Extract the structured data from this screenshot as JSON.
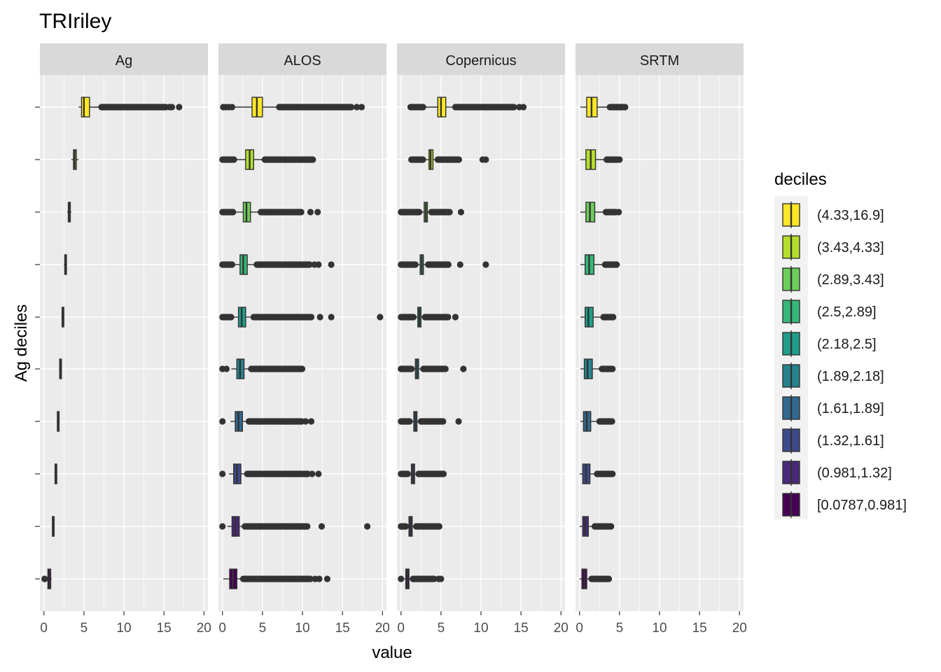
{
  "chart_data": {
    "type": "boxplot",
    "title": "TRIriley",
    "xlabel": "value",
    "ylabel": "Ag deciles",
    "xlim": [
      -0.5,
      20.5
    ],
    "x_ticks": [
      "0",
      "5",
      "10",
      "15",
      "20"
    ],
    "x_tick_values": [
      0,
      5,
      10,
      15,
      20
    ],
    "grid": true,
    "legend": {
      "title": "deciles",
      "position": "right",
      "entries": [
        {
          "label": "(4.33,16.9]",
          "color": "#FDE725"
        },
        {
          "label": "(3.43,4.33]",
          "color": "#B4DE2C"
        },
        {
          "label": "(2.89,3.43]",
          "color": "#6DCD59"
        },
        {
          "label": "(2.5,2.89]",
          "color": "#35B779"
        },
        {
          "label": "(2.18,2.5]",
          "color": "#1F9E89"
        },
        {
          "label": "(1.89,2.18]",
          "color": "#26828E"
        },
        {
          "label": "(1.61,1.89]",
          "color": "#31688E"
        },
        {
          "label": "(1.32,1.61]",
          "color": "#3E4A89"
        },
        {
          "label": "(0.981,1.32]",
          "color": "#482878"
        },
        {
          "label": "[0.0787,0.981]",
          "color": "#440154"
        }
      ]
    },
    "panels": [
      {
        "name": "Ag",
        "boxes": [
          {
            "q1": 4.7,
            "median": 5.0,
            "q3": 5.7,
            "wlo": 4.33,
            "whi": 7.2,
            "outliers": [
              [
                7.2,
                15.3
              ],
              15.7,
              16.0,
              16.9
            ]
          },
          {
            "q1": 3.7,
            "median": 3.85,
            "q3": 4.05,
            "wlo": 3.43,
            "whi": 4.33,
            "outliers": []
          },
          {
            "q1": 3.05,
            "median": 3.15,
            "q3": 3.3,
            "wlo": 2.89,
            "whi": 3.43,
            "outliers": []
          },
          {
            "q1": 2.6,
            "median": 2.7,
            "q3": 2.8,
            "wlo": 2.5,
            "whi": 2.89,
            "outliers": []
          },
          {
            "q1": 2.27,
            "median": 2.34,
            "q3": 2.42,
            "wlo": 2.18,
            "whi": 2.5,
            "outliers": []
          },
          {
            "q1": 1.97,
            "median": 2.04,
            "q3": 2.11,
            "wlo": 1.89,
            "whi": 2.18,
            "outliers": []
          },
          {
            "q1": 1.68,
            "median": 1.75,
            "q3": 1.82,
            "wlo": 1.61,
            "whi": 1.89,
            "outliers": []
          },
          {
            "q1": 1.39,
            "median": 1.46,
            "q3": 1.54,
            "wlo": 1.32,
            "whi": 1.61,
            "outliers": []
          },
          {
            "q1": 1.06,
            "median": 1.15,
            "q3": 1.24,
            "wlo": 0.981,
            "whi": 1.32,
            "outliers": []
          },
          {
            "q1": 0.5,
            "median": 0.7,
            "q3": 0.85,
            "wlo": 0.0787,
            "whi": 0.981,
            "outliers": [
              0.0787,
              0.12
            ]
          }
        ]
      },
      {
        "name": "ALOS",
        "boxes": [
          {
            "q1": 3.7,
            "median": 4.3,
            "q3": 5.0,
            "wlo": 1.5,
            "whi": 7.1,
            "outliers": [
              0.1,
              0.4,
              0.8,
              1.2,
              [
                7.1,
                16.2
              ],
              16.8,
              17.4
            ]
          },
          {
            "q1": 2.9,
            "median": 3.4,
            "q3": 3.9,
            "wlo": 1.5,
            "whi": 5.3,
            "outliers": [
              [
                0,
                1.5
              ],
              [
                5.3,
                11.3
              ]
            ]
          },
          {
            "q1": 2.6,
            "median": 3.0,
            "q3": 3.5,
            "wlo": 1.4,
            "whi": 4.8,
            "outliers": [
              [
                0,
                1.4
              ],
              [
                4.8,
                9.9
              ],
              11.0,
              11.9
            ]
          },
          {
            "q1": 2.2,
            "median": 2.6,
            "q3": 3.1,
            "wlo": 1.3,
            "whi": 4.3,
            "outliers": [
              [
                0,
                1.3
              ],
              [
                4.3,
                11.0
              ],
              11.5,
              12.0,
              13.6
            ]
          },
          {
            "q1": 2.0,
            "median": 2.4,
            "q3": 2.9,
            "wlo": 1.2,
            "whi": 3.9,
            "outliers": [
              [
                0,
                1.2
              ],
              [
                3.9,
                11.1
              ],
              12.2,
              13.6,
              19.7
            ]
          },
          {
            "q1": 1.8,
            "median": 2.2,
            "q3": 2.7,
            "wlo": 1.1,
            "whi": 3.6,
            "outliers": [
              0,
              0.5,
              [
                3.6,
                10.0
              ]
            ]
          },
          {
            "q1": 1.6,
            "median": 2.0,
            "q3": 2.5,
            "wlo": 1.0,
            "whi": 3.3,
            "outliers": [
              0,
              [
                3.3,
                9.9
              ],
              10.4,
              11.1
            ]
          },
          {
            "q1": 1.4,
            "median": 1.8,
            "q3": 2.3,
            "wlo": 0.8,
            "whi": 3.1,
            "outliers": [
              0,
              [
                3.1,
                10.7
              ],
              11.2,
              12.0
            ]
          },
          {
            "q1": 1.2,
            "median": 1.6,
            "q3": 2.1,
            "wlo": 0.6,
            "whi": 2.8,
            "outliers": [
              0,
              [
                2.8,
                10.6
              ],
              12.4,
              18.1
            ]
          },
          {
            "q1": 0.9,
            "median": 1.3,
            "q3": 1.8,
            "wlo": 0.1,
            "whi": 2.6,
            "outliers": [
              [
                2.6,
                11.0
              ],
              11.6,
              12.1,
              13.1
            ]
          }
        ]
      },
      {
        "name": "Copernicus",
        "boxes": [
          {
            "q1": 4.6,
            "median": 5.0,
            "q3": 5.6,
            "wlo": 2.8,
            "whi": 6.8,
            "outliers": [
              [
                1.2,
                2.8
              ],
              [
                6.8,
                14.2
              ],
              14.8,
              15.3
            ]
          },
          {
            "q1": 3.5,
            "median": 3.7,
            "q3": 4.0,
            "wlo": 2.8,
            "whi": 4.6,
            "outliers": [
              [
                1.3,
                2.8
              ],
              [
                4.6,
                7.3
              ],
              10.2,
              10.6
            ]
          },
          {
            "q1": 2.9,
            "median": 3.1,
            "q3": 3.3,
            "wlo": 2.3,
            "whi": 3.8,
            "outliers": [
              [
                0,
                2.3
              ],
              [
                3.8,
                6.2
              ],
              7.5
            ]
          },
          {
            "q1": 2.4,
            "median": 2.6,
            "q3": 2.8,
            "wlo": 1.9,
            "whi": 3.4,
            "outliers": [
              [
                0,
                1.9
              ],
              [
                3.4,
                6.0
              ],
              7.4,
              10.6
            ]
          },
          {
            "q1": 2.1,
            "median": 2.3,
            "q3": 2.5,
            "wlo": 1.6,
            "whi": 3.0,
            "outliers": [
              [
                0,
                1.6
              ],
              [
                3.0,
                6.0
              ],
              6.8
            ]
          },
          {
            "q1": 1.8,
            "median": 2.0,
            "q3": 2.2,
            "wlo": 1.4,
            "whi": 2.8,
            "outliers": [
              [
                0,
                1.4
              ],
              [
                2.8,
                5.6
              ],
              7.8
            ]
          },
          {
            "q1": 1.6,
            "median": 1.8,
            "q3": 2.0,
            "wlo": 1.2,
            "whi": 2.5,
            "outliers": [
              [
                0,
                1.2
              ],
              [
                2.5,
                5.3
              ],
              7.2
            ]
          },
          {
            "q1": 1.3,
            "median": 1.5,
            "q3": 1.7,
            "wlo": 0.9,
            "whi": 2.2,
            "outliers": [
              [
                0,
                0.9
              ],
              [
                2.2,
                5.4
              ]
            ]
          },
          {
            "q1": 1.0,
            "median": 1.2,
            "q3": 1.4,
            "wlo": 0.6,
            "whi": 1.9,
            "outliers": [
              [
                0,
                0.6
              ],
              [
                1.9,
                4.9
              ]
            ]
          },
          {
            "q1": 0.6,
            "median": 0.8,
            "q3": 1.0,
            "wlo": 0.2,
            "whi": 1.5,
            "outliers": [
              0,
              [
                1.5,
                4.2
              ],
              4.7,
              5.0
            ]
          }
        ]
      },
      {
        "name": "SRTM",
        "boxes": [
          {
            "q1": 0.9,
            "median": 1.5,
            "q3": 2.2,
            "wlo": 0.1,
            "whi": 3.8,
            "outliers": [
              [
                3.8,
                5.4
              ],
              5.7
            ]
          },
          {
            "q1": 0.8,
            "median": 1.4,
            "q3": 2.0,
            "wlo": 0.1,
            "whi": 3.4,
            "outliers": [
              [
                3.4,
                4.8
              ],
              5.0
            ]
          },
          {
            "q1": 0.8,
            "median": 1.3,
            "q3": 1.9,
            "wlo": 0.1,
            "whi": 3.3,
            "outliers": [
              [
                3.3,
                4.6
              ],
              4.9
            ]
          },
          {
            "q1": 0.7,
            "median": 1.2,
            "q3": 1.8,
            "wlo": 0.1,
            "whi": 3.2,
            "outliers": [
              [
                3.2,
                4.7
              ]
            ]
          },
          {
            "q1": 0.7,
            "median": 1.1,
            "q3": 1.7,
            "wlo": 0.1,
            "whi": 3.0,
            "outliers": [
              [
                3.0,
                4.3
              ]
            ]
          },
          {
            "q1": 0.6,
            "median": 1.0,
            "q3": 1.6,
            "wlo": 0.1,
            "whi": 2.8,
            "outliers": [
              [
                2.8,
                4.2
              ]
            ]
          },
          {
            "q1": 0.5,
            "median": 0.9,
            "q3": 1.4,
            "wlo": 0.1,
            "whi": 2.5,
            "outliers": [
              [
                2.5,
                4.1
              ]
            ]
          },
          {
            "q1": 0.4,
            "median": 0.8,
            "q3": 1.3,
            "wlo": 0.0,
            "whi": 2.2,
            "outliers": [
              [
                2.2,
                4.2
              ]
            ]
          },
          {
            "q1": 0.4,
            "median": 0.7,
            "q3": 1.1,
            "wlo": 0.0,
            "whi": 1.9,
            "outliers": [
              [
                1.9,
                4.0
              ]
            ]
          },
          {
            "q1": 0.3,
            "median": 0.6,
            "q3": 0.9,
            "wlo": 0.0,
            "whi": 1.5,
            "outliers": [
              [
                1.5,
                3.7
              ]
            ]
          }
        ]
      }
    ]
  }
}
